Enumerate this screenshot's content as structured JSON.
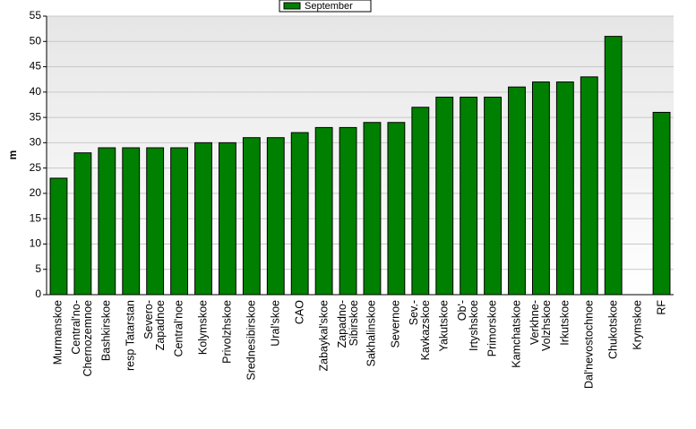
{
  "chart_data": {
    "type": "bar",
    "y_label": "m",
    "categories": [
      "Murmanskoe",
      "Central'no-\nChernozemnoe",
      "Bashkirskoe",
      "resp Tatarstan",
      "Severo-\nZapadnoe",
      "Central'noe",
      "Kolymskoe",
      "Privolzhskoe",
      "Srednesibirskoe",
      "Ural'skoe",
      "CAO",
      "Zabaykal'skoe",
      "Zapadno-\nSibirskoe",
      "Sakhalinskoe",
      "Severnoe",
      "Sev.-\nKavkazskoe",
      "Yakutskoe",
      "Ob'-\nIrtyshskoe",
      "Primorskoe",
      "Kamchatskoe",
      "Verkhne-\nVolzhskoe",
      "Irkutskoe",
      "Dal'nevostochnoe",
      "Chukotskoe",
      "Krymskoe",
      "RF"
    ],
    "series": [
      {
        "name": "September",
        "color": "#008000",
        "values": [
          23,
          28,
          29,
          29,
          29,
          29,
          30,
          30,
          31,
          31,
          32,
          33,
          33,
          34,
          34,
          37,
          39,
          39,
          39,
          41,
          42,
          42,
          43,
          51,
          null,
          36
        ]
      }
    ],
    "ylim": [
      0,
      55
    ],
    "yticks": [
      0,
      5,
      10,
      15,
      20,
      25,
      30,
      35,
      40,
      45,
      50,
      55
    ],
    "grid": true,
    "legend": "top"
  }
}
